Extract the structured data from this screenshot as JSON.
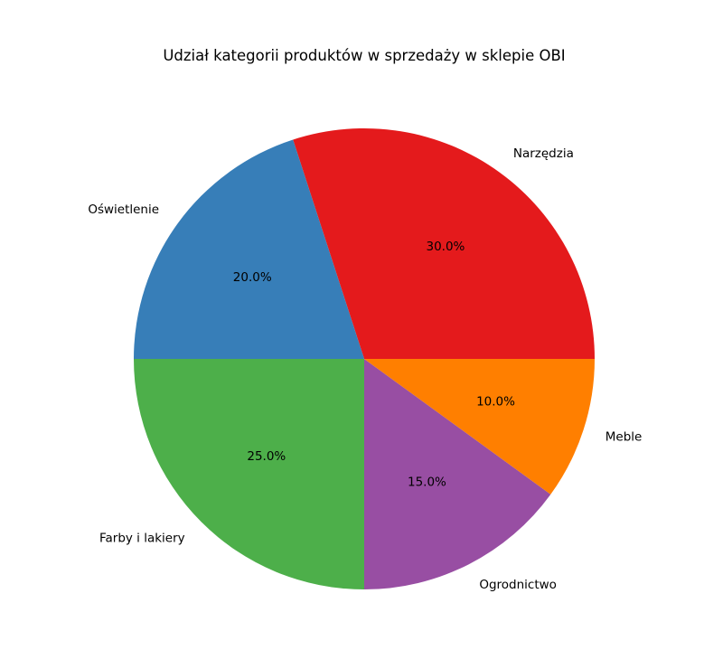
{
  "chart_data": {
    "type": "pie",
    "title": "Udział kategorii produktów w sprzedaży w sklepie OBI",
    "categories": [
      "Narzędzia",
      "Oświetlenie",
      "Farby i lakiery",
      "Ogrodnictwo",
      "Meble"
    ],
    "values": [
      30,
      20,
      25,
      15,
      10
    ],
    "percent_labels": [
      "30.0%",
      "20.0%",
      "25.0%",
      "15.0%",
      "10.0%"
    ],
    "colors": [
      "#e41a1c",
      "#377eb8",
      "#4daf4a",
      "#984ea3",
      "#ff7f00"
    ],
    "start_angle_deg": 0,
    "direction": "counterclockwise",
    "legend": "none",
    "grid": false
  }
}
